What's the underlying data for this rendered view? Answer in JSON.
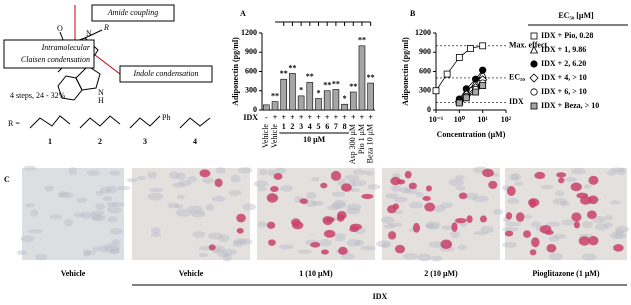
{
  "scheme": {
    "boxes": [
      "Amide coupling",
      "Indole condensation"
    ],
    "claisen": [
      "Intramolecular",
      "Claisen condensation"
    ],
    "yield": "4 steps, 24 - 32%",
    "r_label": "R =",
    "atoms": [
      "O",
      "N",
      "R",
      "N",
      "H"
    ],
    "compounds": [
      "1",
      "2",
      "3",
      "4"
    ],
    "ph": "Ph"
  },
  "chart_data": [
    {
      "type": "bar",
      "panel": "A",
      "ylabel": "Adiponectin (pg/ml)",
      "categories": [
        "Vehicle",
        "Vehicle",
        "1",
        "2",
        "3",
        "4",
        "5",
        "6",
        "7",
        "8",
        "Asp 300 μM",
        "Pio 1 μM",
        "Beza 10 μM"
      ],
      "values": [
        80,
        130,
        480,
        570,
        220,
        430,
        180,
        300,
        320,
        90,
        280,
        1000,
        420
      ],
      "color": "#a6a6a6",
      "ylim": [
        0,
        1200
      ],
      "yticks": [
        0,
        300,
        600,
        900,
        1200
      ],
      "treatment_label": "IDX",
      "treatment": [
        "-",
        "+",
        "+",
        "+",
        "+",
        "+",
        "+",
        "+",
        "+",
        "+",
        "+",
        "+",
        "+"
      ],
      "group_label": "10 μM",
      "significance": [
        null,
        "**",
        "**",
        "**",
        "*",
        "**",
        "*",
        "**",
        "**",
        "*",
        "**",
        "**",
        "**"
      ]
    },
    {
      "type": "line",
      "panel": "B",
      "ylabel": "Adiponectin (pg/ml)",
      "xlabel": "Concentration (μM)",
      "xscale": "log",
      "xlim": [
        0.1,
        100
      ],
      "xticks": [
        {
          "value": 0.1,
          "label": "10⁻¹"
        },
        {
          "value": 1,
          "label": "10⁰"
        },
        {
          "value": 10,
          "label": "10¹"
        },
        {
          "value": 100,
          "label": "10²"
        }
      ],
      "ylim": [
        0,
        1200
      ],
      "yticks": [
        0,
        300,
        600,
        900,
        1200
      ],
      "reference_lines": [
        {
          "label": "Max. effect",
          "value": 1000
        },
        {
          "label": "EC₅₀",
          "value": 500
        },
        {
          "label": "IDX",
          "value": 120
        }
      ],
      "legend_title": "EC₅₀ [μM]",
      "series": [
        {
          "name": "IDX + Pio, 0.28",
          "color": "#ffffff",
          "marker": "square",
          "x": [
            0.1,
            0.3,
            1,
            3,
            10
          ],
          "values": [
            300,
            560,
            820,
            960,
            1000
          ]
        },
        {
          "name": "IDX + 1, 9.86",
          "color": "#ffffff",
          "marker": "triangle",
          "x": [
            1,
            2,
            5,
            10
          ],
          "values": [
            140,
            290,
            420,
            550
          ]
        },
        {
          "name": "IDX + 2, 6.20",
          "color": "#000000",
          "marker": "circle",
          "x": [
            1,
            2,
            5,
            10
          ],
          "values": [
            170,
            330,
            480,
            620
          ]
        },
        {
          "name": "IDX + 4, > 10",
          "color": "#ffffff",
          "marker": "diamond",
          "x": [
            1,
            2,
            5,
            10
          ],
          "values": [
            130,
            240,
            350,
            470
          ]
        },
        {
          "name": "IDX + 6, > 10",
          "color": "#ffffff",
          "marker": "circle",
          "x": [
            1,
            2,
            5,
            10
          ],
          "values": [
            120,
            210,
            320,
            420
          ]
        },
        {
          "name": "IDX + Beza, > 10",
          "color": "#a6a6a6",
          "marker": "square",
          "x": [
            1,
            2,
            5,
            10
          ],
          "values": [
            110,
            190,
            280,
            380
          ]
        }
      ]
    }
  ],
  "panel_c": {
    "label": "C",
    "images": [
      "Vehicle",
      "Vehicle",
      "1 (10 μM)",
      "2 (10 μM)",
      "Pioglitazone (1 μM)"
    ],
    "group": "IDX"
  }
}
